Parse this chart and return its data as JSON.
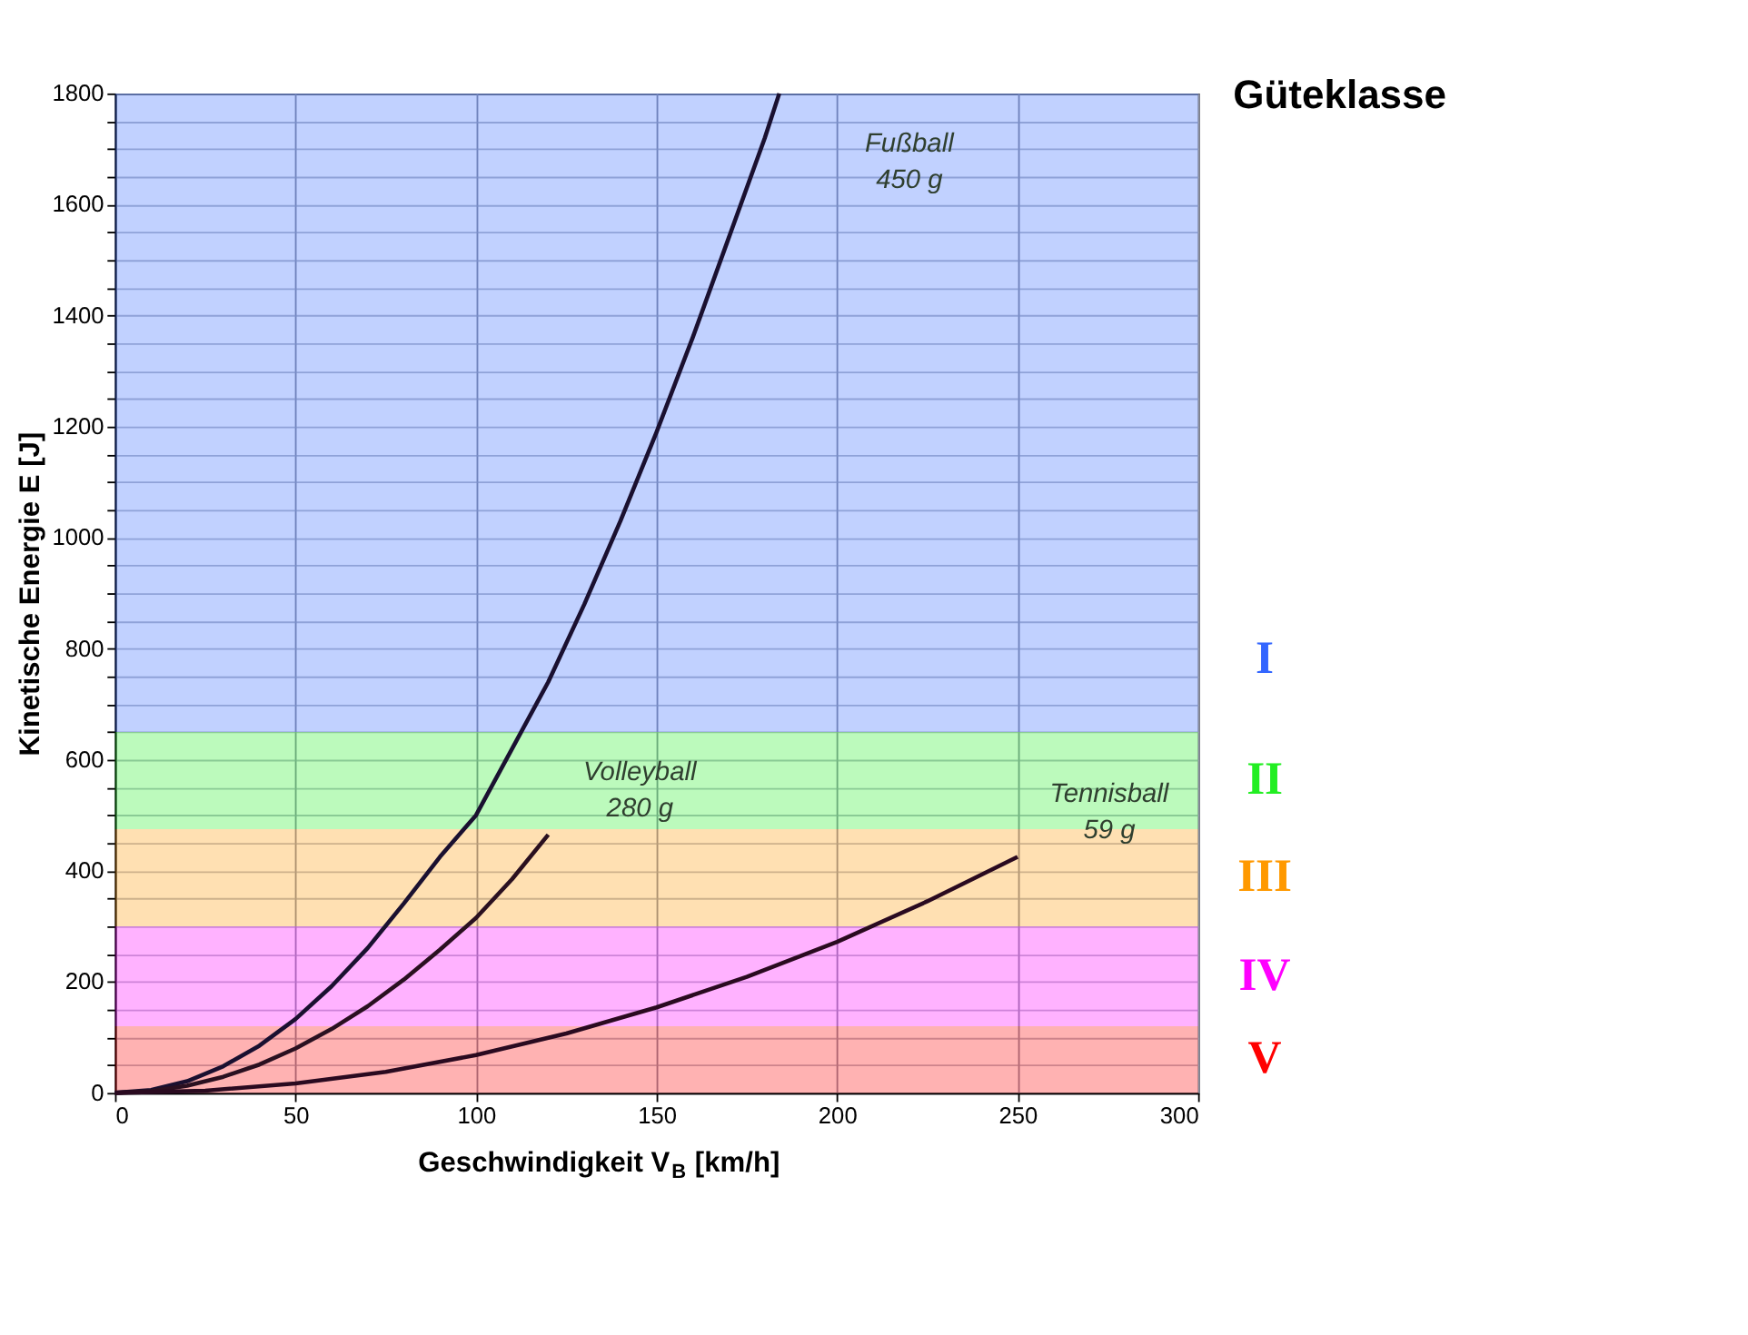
{
  "chart_data": {
    "type": "line",
    "xlabel": "Geschwindigkeit V$_{B}$ [km/h]",
    "ylabel": "Kinetische Energie E [J]",
    "legend_title": "Güteklasse",
    "xlim": [
      0,
      300
    ],
    "xticks": [
      0,
      50,
      100,
      150,
      200,
      250,
      300
    ],
    "ylim": [
      0,
      1800
    ],
    "yticks": [
      0,
      {
        "value": 50,
        "label": null
      },
      {
        "value": 100,
        "label": null
      },
      {
        "value": 150,
        "label": null
      },
      200,
      {
        "value": 250,
        "label": null
      },
      {
        "value": 300,
        "label": null
      },
      {
        "value": 350,
        "label": null
      },
      400,
      {
        "value": 450,
        "label": null
      },
      {
        "value": 500,
        "label": null
      },
      {
        "value": 550,
        "label": null
      },
      600,
      {
        "value": 650,
        "label": null
      },
      {
        "value": 700,
        "label": null
      },
      {
        "value": 750,
        "label": null
      },
      800,
      {
        "value": 850,
        "label": null
      },
      {
        "value": 900,
        "label": null
      },
      {
        "value": 950,
        "label": null
      },
      1000,
      {
        "value": 1050,
        "label": null
      },
      {
        "value": 1100,
        "label": null
      },
      {
        "value": 1150,
        "label": null
      },
      1200,
      {
        "value": 1250,
        "label": null
      },
      {
        "value": 1300,
        "label": null
      },
      {
        "value": 1350,
        "label": null
      },
      1400,
      {
        "value": 1450,
        "label": null
      },
      {
        "value": 1500,
        "label": null
      },
      {
        "value": 1550,
        "label": null
      },
      1600,
      {
        "value": 1650,
        "label": null
      },
      {
        "value": 1700,
        "label": null
      },
      {
        "value": 1750,
        "label": null
      },
      1800
    ],
    "grid": true,
    "marker": "none",
    "line_style": "solid",
    "series": [
      {
        "name": "Fußball\n450 g",
        "color": "#1a1030",
        "x": [
          0,
          10,
          20,
          30,
          40,
          50,
          60,
          70,
          80,
          90,
          100,
          110,
          120,
          130,
          140,
          150,
          160,
          170,
          180,
          184
        ],
        "values": [
          0,
          5,
          21,
          48,
          85,
          133,
          192,
          261,
          341,
          425,
          500,
          620,
          740,
          880,
          1030,
          1190,
          1360,
          1540,
          1720,
          1800
        ]
      },
      {
        "name": "Volleyball\n280 g",
        "color": "#2a1020",
        "x": [
          0,
          10,
          20,
          30,
          40,
          50,
          60,
          70,
          80,
          90,
          100,
          110,
          120
        ],
        "values": [
          0,
          3,
          13,
          29,
          51,
          80,
          115,
          156,
          204,
          258,
          315,
          385,
          465
        ]
      },
      {
        "name": "Tennisball\n59 g",
        "color": "#2a0a20",
        "x": [
          0,
          25,
          50,
          75,
          100,
          125,
          150,
          175,
          200,
          225,
          250
        ],
        "values": [
          0,
          4,
          17,
          38,
          68,
          107,
          154,
          209,
          272,
          345,
          425
        ]
      }
    ],
    "bands": [
      {
        "axis": "y",
        "from": 650,
        "to": 1800,
        "label": "I",
        "color": "#3366ff"
      },
      {
        "axis": "y",
        "from": 475,
        "to": 650,
        "label": "II",
        "color": "#22ee22"
      },
      {
        "axis": "y",
        "from": 300,
        "to": 475,
        "label": "III",
        "color": "#ff9900"
      },
      {
        "axis": "y",
        "from": 120,
        "to": 300,
        "label": "IV",
        "color": "#ff00ff"
      },
      {
        "axis": "y",
        "from": 0,
        "to": 120,
        "label": "V",
        "color": "#ff0000"
      }
    ]
  }
}
